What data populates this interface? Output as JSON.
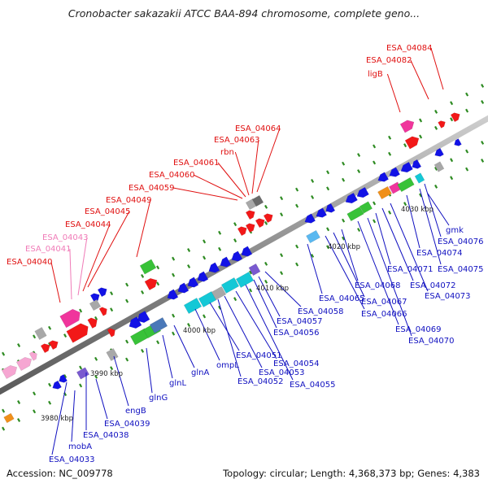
{
  "title": "Cronobacter sakazakii ATCC BAA-894 chromosome, complete geno...",
  "footer": {
    "accession": "Accession: NC_009778",
    "topology": "Topology: circular; Length: 4,368,373 bp; Genes: 4,383"
  },
  "colors": {
    "backbone": "#8c8c8c",
    "tick": "#2e8b22",
    "forward_label": "#e01010",
    "pink_label": "#f07cb8",
    "reverse_label": "#1010c0"
  },
  "scale_labels": [
    "3980 kbp",
    "3990 kbp",
    "4000 kbp",
    "4010 kbp",
    "4020 kbp",
    "4030 kbp"
  ],
  "labels_above": [
    {
      "text": "ESA_04040",
      "color": "red"
    },
    {
      "text": "ESA_04041",
      "color": "pink"
    },
    {
      "text": "ESA_04043",
      "color": "pink"
    },
    {
      "text": "ESA_04044",
      "color": "red"
    },
    {
      "text": "ESA_04045",
      "color": "red"
    },
    {
      "text": "ESA_04049",
      "color": "red"
    },
    {
      "text": "ESA_04059",
      "color": "red"
    },
    {
      "text": "ESA_04060",
      "color": "red"
    },
    {
      "text": "ESA_04061",
      "color": "red"
    },
    {
      "text": "rbn",
      "color": "red"
    },
    {
      "text": "ESA_04063",
      "color": "red"
    },
    {
      "text": "ESA_04064",
      "color": "red"
    },
    {
      "text": "ligB",
      "color": "red"
    },
    {
      "text": "ESA_04082",
      "color": "red"
    },
    {
      "text": "ESA_04084",
      "color": "red"
    }
  ],
  "labels_below": [
    "ESA_04033",
    "mobA",
    "ESA_04038",
    "ESA_04039",
    "engB",
    "glnG",
    "glnL",
    "glnA",
    "ompL",
    "ESA_04051",
    "ESA_04052",
    "ESA_04053",
    "ESA_04054",
    "ESA_04055",
    "ESA_04056",
    "ESA_04057",
    "ESA_04058",
    "ESA_04065",
    "ESA_04066",
    "ESA_04067",
    "ESA_04068",
    "ESA_04069",
    "ESA_04070",
    "ESA_04071",
    "ESA_04072",
    "ESA_04073",
    "ESA_04074",
    "ESA_04075",
    "ESA_04076",
    "gmk"
  ]
}
